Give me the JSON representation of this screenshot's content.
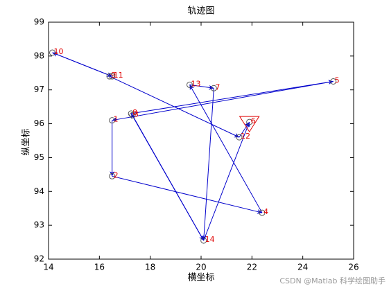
{
  "chart_data": {
    "type": "trajectory",
    "title": "轨迹图",
    "x_label": "横坐标",
    "y_label": "纵坐标",
    "labels": [
      "1",
      "2",
      "3",
      "4",
      "5",
      "6",
      "7",
      "8",
      "9",
      "10",
      "11",
      "12",
      "13",
      "14"
    ],
    "x": [
      16.5,
      16.5,
      17.3,
      22.4,
      25.2,
      21.9,
      20.5,
      17.25,
      16.4,
      14.15,
      16.5,
      21.5,
      19.55,
      20.1
    ],
    "values": [
      96.1,
      94.45,
      96.25,
      93.37,
      97.25,
      96.05,
      97.05,
      96.3,
      97.4,
      98.1,
      97.4,
      95.6,
      97.15,
      92.55
    ],
    "arrows": [
      [
        0,
        1
      ],
      [
        1,
        3
      ],
      [
        3,
        12
      ],
      [
        12,
        6
      ],
      [
        6,
        13
      ],
      [
        13,
        7
      ],
      [
        2,
        13
      ],
      [
        7,
        4
      ],
      [
        4,
        0
      ],
      [
        9,
        10
      ],
      [
        10,
        9
      ],
      [
        8,
        11
      ],
      [
        11,
        5
      ],
      [
        13,
        5
      ]
    ],
    "triangle_point": 5,
    "marker_color": "#555555",
    "label_color": "#e00000",
    "arrow_color": "#0000cc",
    "xlim": [
      14,
      26
    ],
    "xticks": [
      14,
      16,
      18,
      20,
      22,
      24,
      26
    ],
    "ylim": [
      92,
      99
    ],
    "yticks": [
      92,
      93,
      94,
      95,
      96,
      97,
      98,
      99
    ],
    "watermark": "CSDN @Matlab 科学绘图助手"
  }
}
